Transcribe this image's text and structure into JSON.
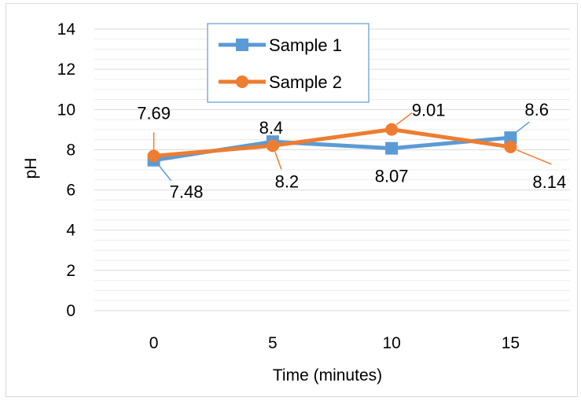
{
  "chart_data": {
    "type": "line",
    "title": "",
    "xlabel": "Time (minutes)",
    "ylabel": "pH",
    "x": [
      0,
      5,
      10,
      15
    ],
    "x_tick_labels": [
      "0",
      "5",
      "10",
      "15"
    ],
    "ylim": [
      0,
      14
    ],
    "y_ticks": [
      0,
      2,
      4,
      6,
      8,
      10,
      12,
      14
    ],
    "y_tick_labels": [
      "0",
      "2",
      "4",
      "6",
      "8",
      "10",
      "12",
      "14"
    ],
    "grid": true,
    "legend_position": "top-left",
    "series": [
      {
        "name": "Sample 1",
        "values": [
          7.48,
          8.4,
          8.07,
          8.6
        ],
        "data_labels": [
          "7.48",
          "8.4",
          "8.07",
          "8.6"
        ],
        "color": "#5b9bd5",
        "marker": "square"
      },
      {
        "name": "Sample 2",
        "values": [
          7.69,
          8.2,
          9.01,
          8.14
        ],
        "data_labels": [
          "7.69",
          "8.2",
          "9.01",
          "8.14"
        ],
        "color": "#ed7d31",
        "marker": "circle"
      }
    ]
  }
}
